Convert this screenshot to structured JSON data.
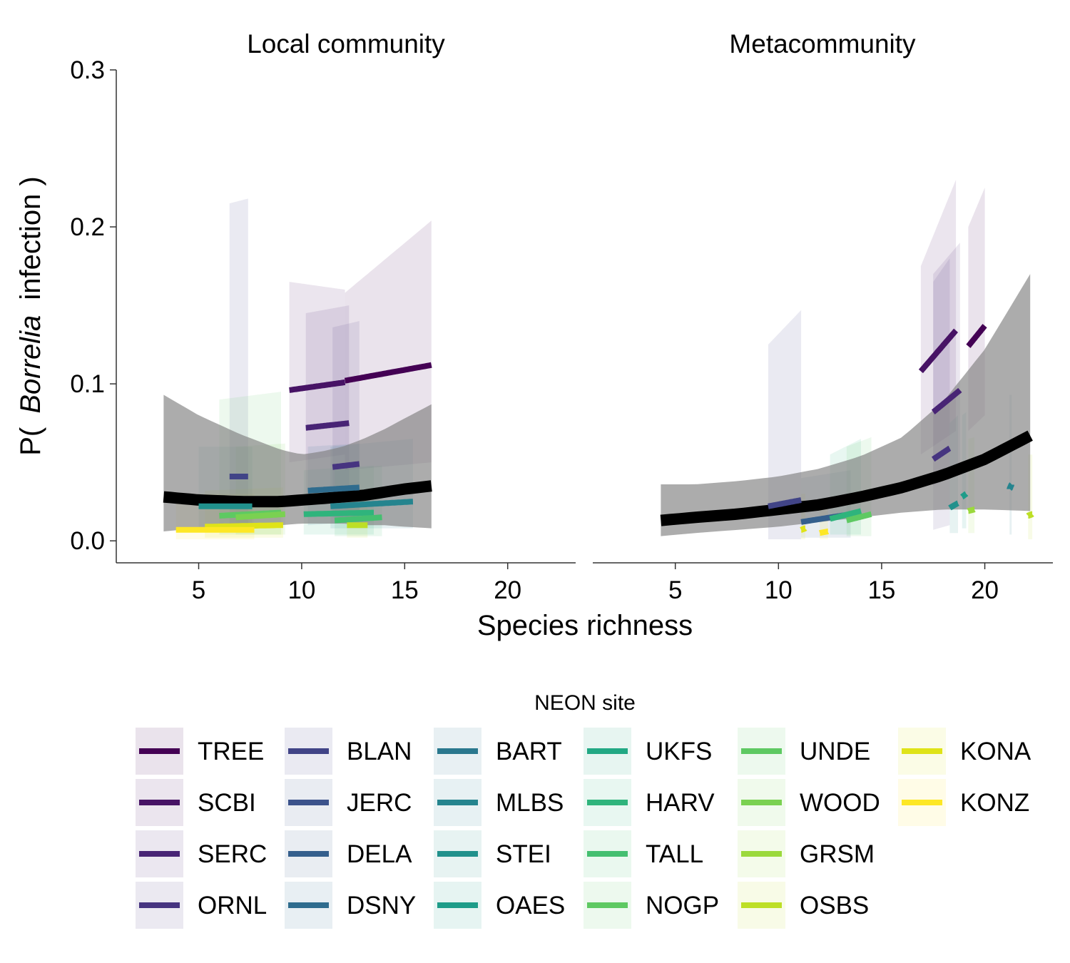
{
  "chart_data": {
    "type": "line",
    "xlabel": "Species richness",
    "ylabel": {
      "prefix": "P(",
      "italic": "Borrelia",
      "suffix": "infection )"
    },
    "ylim": [
      -0.014,
      0.3
    ],
    "yticks": [
      "0.0",
      "0.1",
      "0.2",
      "0.3"
    ],
    "ytick_values": [
      0,
      0.1,
      0.2,
      0.3
    ],
    "xlim": [
      1,
      23.3
    ],
    "xticks": [
      "5",
      "10",
      "15",
      "20"
    ],
    "xtick_values": [
      5,
      10,
      15,
      20
    ],
    "grid": false,
    "legend": {
      "title": "NEON site",
      "placement": "bottom",
      "entries": [
        "TREE",
        "SCBI",
        "SERC",
        "ORNL",
        "BLAN",
        "JERC",
        "DELA",
        "DSNY",
        "BART",
        "MLBS",
        "STEI",
        "OAES",
        "UKFS",
        "HARV",
        "TALL",
        "NOGP",
        "UNDE",
        "WOOD",
        "GRSM",
        "OSBS",
        "KONA",
        "KONZ"
      ]
    },
    "colors": {
      "TREE": "#440154",
      "SCBI": "#471365",
      "SERC": "#482475",
      "ORNL": "#463480",
      "BLAN": "#414487",
      "JERC": "#3b528b",
      "DELA": "#355f8d",
      "DSNY": "#2f6c8e",
      "BART": "#2a788e",
      "MLBS": "#25848e",
      "STEI": "#21918c",
      "OAES": "#1e9c89",
      "UKFS": "#22a884",
      "HARV": "#2fb47c",
      "TALL": "#44bf70",
      "NOGP": "#5ec962",
      "UNDE": "#5ec962",
      "WOOD": "#7ad151",
      "GRSM": "#9bd93c",
      "OSBS": "#bddf26",
      "KONA": "#dfe318",
      "KONZ": "#fde725"
    },
    "panels": [
      {
        "title": "Local community",
        "overall": {
          "x": [
            3.3,
            5,
            7,
            9,
            10,
            11,
            12,
            13,
            14,
            15,
            16.3
          ],
          "y": [
            0.028,
            0.026,
            0.025,
            0.025,
            0.026,
            0.027,
            0.028,
            0.029,
            0.031,
            0.033,
            0.035
          ],
          "lower": [
            0.006,
            0.008,
            0.009,
            0.01,
            0.011,
            0.011,
            0.011,
            0.01,
            0.01,
            0.009,
            0.008
          ],
          "upper": [
            0.093,
            0.08,
            0.068,
            0.058,
            0.055,
            0.057,
            0.06,
            0.065,
            0.071,
            0.078,
            0.087
          ]
        },
        "sites": [
          {
            "site": "TREE",
            "x": [
              12.1,
              16.3
            ],
            "y": [
              0.102,
              0.112
            ],
            "ylo": [
              0.045,
              0.05
            ],
            "yhi": [
              0.158,
              0.204
            ]
          },
          {
            "site": "SCBI",
            "x": [
              9.4,
              12.1
            ],
            "y": [
              0.096,
              0.101
            ],
            "ylo": [
              0.05,
              0.055
            ],
            "yhi": [
              0.165,
              0.16
            ]
          },
          {
            "site": "SERC",
            "x": [
              10.2,
              12.3
            ],
            "y": [
              0.072,
              0.075
            ],
            "ylo": [
              0.03,
              0.032
            ],
            "yhi": [
              0.145,
              0.15
            ]
          },
          {
            "site": "ORNL",
            "x": [
              11.5,
              12.8
            ],
            "y": [
              0.047,
              0.049
            ],
            "ylo": [
              0.015,
              0.015
            ],
            "yhi": [
              0.136,
              0.14
            ]
          },
          {
            "site": "BLAN",
            "x": [
              6.5,
              7.4
            ],
            "y": [
              0.041,
              0.041
            ],
            "ylo": [
              0.01,
              0.01
            ],
            "yhi": [
              0.215,
              0.218
            ]
          },
          {
            "site": "DSNY",
            "x": [
              10.3,
              12.8
            ],
            "y": [
              0.032,
              0.034
            ],
            "ylo": [
              0.01,
              0.012
            ],
            "yhi": [
              0.06,
              0.062
            ]
          },
          {
            "site": "MLBS",
            "x": [
              11.4,
              15.4
            ],
            "y": [
              0.022,
              0.025
            ],
            "ylo": [
              0.008,
              0.008
            ],
            "yhi": [
              0.06,
              0.065
            ]
          },
          {
            "site": "STEI",
            "x": [
              5,
              7.6
            ],
            "y": [
              0.022,
              0.022
            ],
            "ylo": [
              0.007,
              0.007
            ],
            "yhi": [
              0.06,
              0.06
            ]
          },
          {
            "site": "HARV",
            "x": [
              10.1,
              13.5
            ],
            "y": [
              0.017,
              0.018
            ],
            "ylo": [
              0.004,
              0.004
            ],
            "yhi": [
              0.045,
              0.048
            ]
          },
          {
            "site": "TALL",
            "x": [
              11.6,
              13.9
            ],
            "y": [
              0.013,
              0.015
            ],
            "ylo": [
              0.003,
              0.003
            ],
            "yhi": [
              0.045,
              0.048
            ]
          },
          {
            "site": "NOGP",
            "x": [
              6,
              9
            ],
            "y": [
              0.016,
              0.018
            ],
            "ylo": [
              0.004,
              0.004
            ],
            "yhi": [
              0.09,
              0.095
            ]
          },
          {
            "site": "WOOD",
            "x": [
              6.8,
              9.2
            ],
            "y": [
              0.015,
              0.017
            ],
            "ylo": [
              0.004,
              0.004
            ],
            "yhi": [
              0.06,
              0.062
            ]
          },
          {
            "site": "OSBS",
            "x": [
              12.2,
              13.2
            ],
            "y": [
              0.01,
              0.01
            ],
            "ylo": [
              0.002,
              0.002
            ],
            "yhi": [
              0.03,
              0.03
            ]
          },
          {
            "site": "KONA",
            "x": [
              5.3,
              9.1
            ],
            "y": [
              0.009,
              0.01
            ],
            "ylo": [
              0.002,
              0.002
            ],
            "yhi": [
              0.032,
              0.034
            ]
          },
          {
            "site": "KONZ",
            "x": [
              3.9,
              7.7
            ],
            "y": [
              0.007,
              0.007
            ],
            "ylo": [
              0.001,
              0.001
            ],
            "yhi": [
              0.03,
              0.03
            ]
          }
        ]
      },
      {
        "title": "Metacommunity",
        "overall": {
          "x": [
            4.3,
            6,
            8,
            10,
            12,
            14,
            16,
            18,
            20,
            22.2
          ],
          "y": [
            0.013,
            0.015,
            0.017,
            0.02,
            0.023,
            0.028,
            0.034,
            0.042,
            0.052,
            0.067
          ],
          "lower": [
            0.003,
            0.005,
            0.007,
            0.009,
            0.012,
            0.015,
            0.018,
            0.02,
            0.02,
            0.019
          ],
          "upper": [
            0.036,
            0.036,
            0.038,
            0.041,
            0.046,
            0.054,
            0.066,
            0.089,
            0.122,
            0.17
          ]
        },
        "sites": [
          {
            "site": "TREE",
            "x": [
              19.2,
              20
            ],
            "y": [
              0.124,
              0.137
            ],
            "ylo": [
              0.07,
              0.08
            ],
            "yhi": [
              0.2,
              0.225
            ]
          },
          {
            "site": "SCBI",
            "x": [
              16.9,
              18.6
            ],
            "y": [
              0.108,
              0.134
            ],
            "ylo": [
              0.055,
              0.07
            ],
            "yhi": [
              0.175,
              0.23
            ]
          },
          {
            "site": "SERC",
            "x": [
              17.5,
              18.8
            ],
            "y": [
              0.082,
              0.096
            ],
            "ylo": [
              0.035,
              0.045
            ],
            "yhi": [
              0.17,
              0.19
            ]
          },
          {
            "site": "ORNL",
            "x": [
              17.5,
              18.3
            ],
            "y": [
              0.052,
              0.059
            ],
            "ylo": [
              0.007,
              0.01
            ],
            "yhi": [
              0.165,
              0.18
            ]
          },
          {
            "site": "BLAN",
            "x": [
              9.5,
              11.1
            ],
            "y": [
              0.022,
              0.026
            ],
            "ylo": [
              0.001,
              0.001
            ],
            "yhi": [
              0.125,
              0.147
            ]
          },
          {
            "site": "DELA",
            "x": [
              11.1,
              13.5
            ],
            "y": [
              0.012,
              0.017
            ],
            "ylo": [
              0.002,
              0.002
            ],
            "yhi": [
              0.04,
              0.045
            ]
          },
          {
            "site": "STEI",
            "x": [
              18.3,
              18.7
            ],
            "y": [
              0.021,
              0.024
            ],
            "ylo": [
              0.005,
              0.005
            ],
            "yhi": [
              0.075,
              0.08
            ]
          },
          {
            "site": "OAES",
            "x": [
              18.9,
              19.1
            ],
            "y": [
              0.028,
              0.03
            ],
            "ylo": [
              0.008,
              0.008
            ],
            "yhi": [
              0.08,
              0.082
            ]
          },
          {
            "site": "MLBS",
            "x": [
              21.2,
              21.3
            ],
            "y": [
              0.033,
              0.036
            ],
            "ylo": [
              0.004,
              0.004
            ],
            "yhi": [
              0.093,
              0.093
            ]
          },
          {
            "site": "HARV",
            "x": [
              12.5,
              14
            ],
            "y": [
              0.014,
              0.019
            ],
            "ylo": [
              0.004,
              0.004
            ],
            "yhi": [
              0.055,
              0.065
            ]
          },
          {
            "site": "UNDE",
            "x": [
              13.3,
              14.5
            ],
            "y": [
              0.013,
              0.017
            ],
            "ylo": [
              0.003,
              0.003
            ],
            "yhi": [
              0.06,
              0.066
            ]
          },
          {
            "site": "GRSM",
            "x": [
              19.2,
              19.5
            ],
            "y": [
              0.019,
              0.02
            ],
            "ylo": [
              0.005,
              0.005
            ],
            "yhi": [
              0.065,
              0.066
            ]
          },
          {
            "site": "OSBS",
            "x": [
              22.1,
              22.3
            ],
            "y": [
              0.016,
              0.017
            ],
            "ylo": [
              0.001,
              0.001
            ],
            "yhi": [
              0.055,
              0.055
            ]
          },
          {
            "site": "KONA",
            "x": [
              11.1,
              11.3
            ],
            "y": [
              0.007,
              0.008
            ],
            "ylo": [
              0.001,
              0.001
            ],
            "yhi": [
              0.03,
              0.03
            ]
          },
          {
            "site": "KONZ",
            "x": [
              12,
              12.4
            ],
            "y": [
              0.005,
              0.006
            ],
            "ylo": [
              0.001,
              0.001
            ],
            "yhi": [
              0.025,
              0.025
            ]
          }
        ]
      }
    ]
  }
}
